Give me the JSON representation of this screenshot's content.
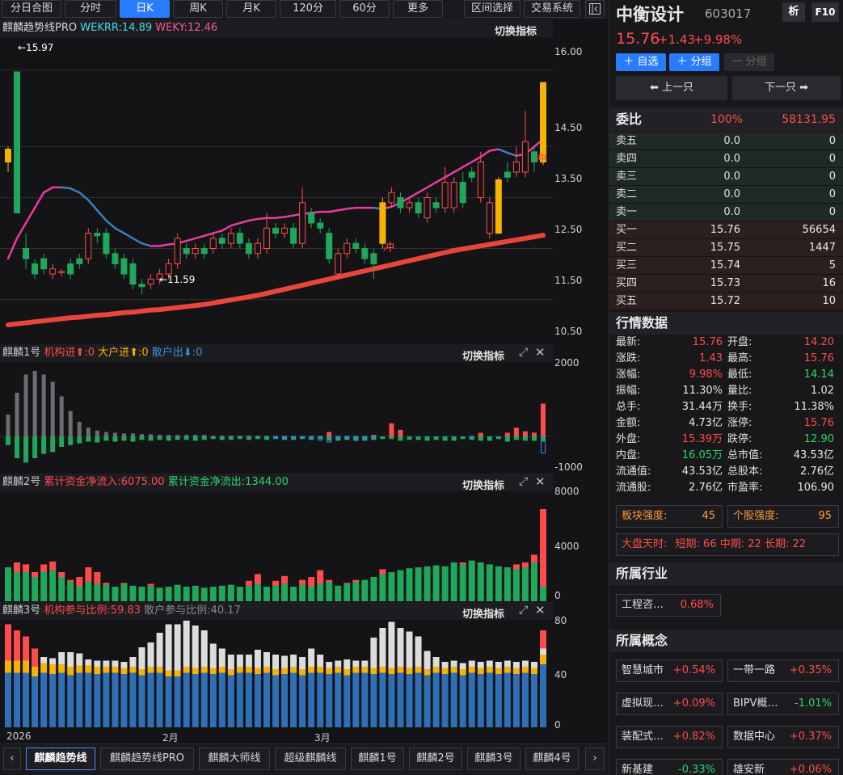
{
  "toolbar": {
    "items": [
      "分日合图",
      "分时",
      "日K",
      "周K",
      "月K",
      "120分",
      "60分",
      "更多",
      "区间选择",
      "交易系统"
    ],
    "active_index": 2
  },
  "main_panel": {
    "title": "麒麟趋势线PRO",
    "wekrr": "WEKRR:14.89",
    "weky": "WEKY:12.46",
    "switch_label": "切换指标",
    "high_label": "←15.97",
    "low_label": "←11.59",
    "chong": "冲",
    "axis": [
      "16.00",
      "14.50",
      "13.50",
      "12.50",
      "11.50",
      "10.50"
    ]
  },
  "panel1": {
    "title": "麒麟1号",
    "jg": "机构进⬆:0",
    "dh": "大户进⬆:0",
    "sh": "散户出⬇:0",
    "switch_label": "切换指标",
    "axis": [
      "2000",
      "-1000"
    ]
  },
  "panel2": {
    "title": "麒麟2号",
    "inflow": "累计资金净流入:6075.00",
    "outflow": "累计资金净流出:1344.00",
    "switch_label": "切换指标",
    "axis": [
      "8000",
      "4000",
      "0"
    ]
  },
  "panel3": {
    "title": "麒麟3号",
    "jg": "机构参与比例:59.83",
    "sh": "散户参与比例:40.17",
    "switch_label": "切换指标",
    "axis": [
      "80",
      "40",
      "0"
    ]
  },
  "xaxis": [
    "2026",
    "2月",
    "3月"
  ],
  "bottom_tabs": [
    "麒麟趋势线",
    "麒麟趋势线PRO",
    "麒麟大师线",
    "超级麒麟线",
    "麒麟1号",
    "麒麟2号",
    "麒麟3号",
    "麒麟4号"
  ],
  "stock": {
    "name": "中衡设计",
    "code": "603017",
    "xi": "析",
    "f10": "F10",
    "price": "15.76",
    "change": "+1.43",
    "pct": "+9.98%"
  },
  "actions": {
    "add_fav": "＋ 自选",
    "add_group": "＋ 分组",
    "sub_group": "一 分组",
    "prev": "⬅ 上一只",
    "next": "下一只 ➡"
  },
  "weibi": {
    "label": "委比",
    "pct": "100%",
    "val": "58131.95"
  },
  "sells": [
    [
      "卖五",
      "0.0",
      "0"
    ],
    [
      "卖四",
      "0.0",
      "0"
    ],
    [
      "卖三",
      "0.0",
      "0"
    ],
    [
      "卖二",
      "0.0",
      "0"
    ],
    [
      "卖一",
      "0.0",
      "0"
    ]
  ],
  "buys": [
    [
      "买一",
      "15.76",
      "56654"
    ],
    [
      "买二",
      "15.75",
      "1447"
    ],
    [
      "买三",
      "15.74",
      "5"
    ],
    [
      "买四",
      "15.73",
      "16"
    ],
    [
      "买五",
      "15.72",
      "10"
    ]
  ],
  "quote_title": "行情数据",
  "quotes": [
    [
      "最新:",
      "15.76",
      "red",
      "开盘:",
      "14.20",
      "red"
    ],
    [
      "涨跌:",
      "1.43",
      "red",
      "最高:",
      "15.76",
      "red"
    ],
    [
      "涨幅:",
      "9.98%",
      "red",
      "最低:",
      "14.14",
      "green"
    ],
    [
      "振幅:",
      "11.30%",
      "white",
      "量比:",
      "1.02",
      "white"
    ],
    [
      "总手:",
      "31.44万",
      "white",
      "换手:",
      "11.38%",
      "white"
    ],
    [
      "金额:",
      "4.73亿",
      "white",
      "涨停:",
      "15.76",
      "red"
    ],
    [
      "外盘:",
      "15.39万",
      "red",
      "跌停:",
      "12.90",
      "green"
    ],
    [
      "内盘:",
      "16.05万",
      "green",
      "总市值:",
      "43.53亿",
      "white"
    ],
    [
      "流通值:",
      "43.53亿",
      "white",
      "总股本:",
      "2.76亿",
      "white"
    ],
    [
      "流通股:",
      "2.76亿",
      "white",
      "市盈率:",
      "106.90",
      "white"
    ]
  ],
  "strength": {
    "sector_label": "板块强度:",
    "sector": "45",
    "stock_label": "个股强度:",
    "stock": "95"
  },
  "market": {
    "label": "大盘天时:",
    "short": "短期: 66",
    "mid": "中期: 22",
    "long": "长期: 22"
  },
  "industry_title": "所属行业",
  "industry": {
    "name": "工程咨…",
    "pct": "0.68%"
  },
  "concept_title": "所属概念",
  "concepts": [
    [
      "智慧城市",
      "+0.54%",
      "red"
    ],
    [
      "一带一路",
      "+0.35%",
      "red"
    ],
    [
      "虚拟现…",
      "+0.09%",
      "red"
    ],
    [
      "BIPV概…",
      "-1.01%",
      "green"
    ],
    [
      "装配式…",
      "+0.82%",
      "red"
    ],
    [
      "数据中心",
      "+0.37%",
      "red"
    ],
    [
      "新基建",
      "-0.33%",
      "green"
    ],
    [
      "雄安新",
      "+0.06%",
      "red"
    ]
  ],
  "candles": [
    [
      14.2,
      14.45,
      14.0,
      14.5
    ],
    [
      13.2,
      15.97,
      13.2,
      15.97
    ],
    [
      12.5,
      12.3,
      12.1,
      12.8
    ],
    [
      12.2,
      12.0,
      11.9,
      12.3
    ],
    [
      12.3,
      12.1,
      12.0,
      12.4
    ],
    [
      12.0,
      12.1,
      11.9,
      12.2
    ],
    [
      12.05,
      12.05,
      11.95,
      12.1
    ],
    [
      12.2,
      12.0,
      11.9,
      12.3
    ],
    [
      12.3,
      12.2,
      12.1,
      12.4
    ],
    [
      12.3,
      12.8,
      12.2,
      12.9
    ],
    [
      12.8,
      12.75,
      12.6,
      12.9
    ],
    [
      12.8,
      12.4,
      12.3,
      12.9
    ],
    [
      12.4,
      12.2,
      12.1,
      12.5
    ],
    [
      12.3,
      12.0,
      11.9,
      12.4
    ],
    [
      12.2,
      11.8,
      11.7,
      12.3
    ],
    [
      11.8,
      11.75,
      11.6,
      11.9
    ],
    [
      11.8,
      11.9,
      11.7,
      12.0
    ],
    [
      11.9,
      12.0,
      11.8,
      12.1
    ],
    [
      12.0,
      12.2,
      11.9,
      12.3
    ],
    [
      12.2,
      12.7,
      12.1,
      12.8
    ],
    [
      12.5,
      12.4,
      12.3,
      12.6
    ],
    [
      12.4,
      12.5,
      12.3,
      12.6
    ],
    [
      12.5,
      12.4,
      12.3,
      12.6
    ],
    [
      12.5,
      12.7,
      12.4,
      12.8
    ],
    [
      12.7,
      12.6,
      12.5,
      12.8
    ],
    [
      12.6,
      12.8,
      12.5,
      12.9
    ],
    [
      12.8,
      12.6,
      12.5,
      12.9
    ],
    [
      12.6,
      12.4,
      12.3,
      12.7
    ],
    [
      12.4,
      12.6,
      12.3,
      12.7
    ],
    [
      12.5,
      12.9,
      12.4,
      13.2
    ],
    [
      12.9,
      12.8,
      12.7,
      13.0
    ],
    [
      12.8,
      12.9,
      12.7,
      13.0
    ],
    [
      12.9,
      12.6,
      12.5,
      13.0
    ],
    [
      12.6,
      13.4,
      12.5,
      13.7
    ],
    [
      13.2,
      13.0,
      12.9,
      13.3
    ],
    [
      13.0,
      12.9,
      12.8,
      13.1
    ],
    [
      12.8,
      12.3,
      12.2,
      12.9
    ],
    [
      12.0,
      12.4,
      11.9,
      12.5
    ],
    [
      12.4,
      12.6,
      12.3,
      12.7
    ],
    [
      12.6,
      12.5,
      12.4,
      12.7
    ],
    [
      12.5,
      12.3,
      12.2,
      12.6
    ],
    [
      12.4,
      12.2,
      11.9,
      12.5
    ],
    [
      12.6,
      13.4,
      12.5,
      13.5
    ],
    [
      13.4,
      13.6,
      13.3,
      13.7
    ],
    [
      13.5,
      13.3,
      13.2,
      13.6
    ],
    [
      13.3,
      13.4,
      13.2,
      13.5
    ],
    [
      13.4,
      13.2,
      13.1,
      13.5
    ],
    [
      13.1,
      13.5,
      13.0,
      13.6
    ],
    [
      13.4,
      13.3,
      13.2,
      13.5
    ],
    [
      13.3,
      13.8,
      13.2,
      14.1
    ],
    [
      13.3,
      13.8,
      13.2,
      13.9
    ],
    [
      13.8,
      13.4,
      13.3,
      14.0
    ],
    [
      14.0,
      13.9,
      13.8,
      14.1
    ],
    [
      13.5,
      14.2,
      13.4,
      14.4
    ],
    [
      12.8,
      13.4,
      12.7,
      13.5
    ],
    [
      12.8,
      13.85,
      12.8,
      13.9
    ],
    [
      14.0,
      13.9,
      13.8,
      14.2
    ],
    [
      14.0,
      14.2,
      13.9,
      14.5
    ],
    [
      14.0,
      14.6,
      13.9,
      15.2
    ],
    [
      14.4,
      14.2,
      14.0,
      14.5
    ],
    [
      14.2,
      15.76,
      14.14,
      15.76
    ]
  ],
  "ma_short": [
    12.3,
    12.7,
    13.0,
    13.3,
    13.6,
    13.7,
    13.7,
    13.68,
    13.6,
    13.45,
    13.25,
    13.05,
    12.9,
    12.8,
    12.7,
    12.6,
    12.55,
    12.55,
    12.58,
    12.6,
    12.65,
    12.7,
    12.75,
    12.8,
    12.85,
    12.95,
    13.0,
    13.05,
    13.08,
    13.1,
    13.1,
    13.12,
    13.15,
    13.18,
    13.2,
    13.22,
    13.22,
    13.25,
    13.28,
    13.3,
    13.3,
    13.3,
    13.28,
    13.32,
    13.4,
    13.5,
    13.6,
    13.7,
    13.8,
    13.9,
    14.0,
    14.1,
    14.2,
    14.3,
    14.42,
    14.45,
    14.38,
    14.32,
    14.36,
    14.5,
    14.65
  ],
  "ma_long": [
    11.0,
    11.02,
    11.04,
    11.06,
    11.08,
    11.1,
    11.12,
    11.14,
    11.15,
    11.17,
    11.19,
    11.2,
    11.22,
    11.24,
    11.25,
    11.27,
    11.29,
    11.3,
    11.32,
    11.34,
    11.36,
    11.38,
    11.4,
    11.43,
    11.46,
    11.49,
    11.52,
    11.55,
    11.58,
    11.62,
    11.66,
    11.7,
    11.74,
    11.78,
    11.82,
    11.86,
    11.9,
    11.94,
    11.98,
    12.02,
    12.06,
    12.1,
    12.14,
    12.18,
    12.22,
    12.26,
    12.3,
    12.34,
    12.38,
    12.42,
    12.46,
    12.49,
    12.52,
    12.55,
    12.58,
    12.61,
    12.64,
    12.67,
    12.7,
    12.73,
    12.76
  ],
  "p1_gray": [
    0.3,
    0.6,
    0.85,
    0.9,
    0.85,
    0.75,
    0.55,
    0.35,
    0.2,
    0.12,
    0.08,
    0.06,
    0.05,
    0.04,
    0.04,
    0.03,
    0.03,
    0.02,
    0.02,
    0.02,
    0.02,
    0.02,
    0.02,
    0.01,
    0.01,
    0.01,
    0.01,
    0.01,
    0.01,
    0.01,
    0,
    0,
    0,
    0,
    0,
    0,
    0,
    0,
    0,
    0,
    0,
    0,
    0,
    0,
    0,
    0,
    0,
    0,
    0,
    0,
    0,
    0,
    0,
    0,
    0,
    0,
    0,
    0,
    0,
    0,
    0
  ],
  "p1_red": [
    0,
    0,
    0,
    0,
    0,
    0,
    0,
    0,
    0,
    0,
    0,
    0,
    0,
    0,
    0,
    0,
    0,
    0,
    0,
    0,
    0,
    0,
    0,
    0,
    0,
    0,
    0,
    0,
    0,
    0,
    0,
    0,
    0,
    0,
    0,
    0,
    0.06,
    0,
    0,
    0,
    0,
    0.02,
    0,
    0.18,
    0.09,
    0,
    0,
    0,
    0,
    0,
    0,
    0,
    0,
    0.05,
    0,
    0,
    0.05,
    0.12,
    0.07,
    0.05,
    0.45
  ],
  "p1_green": [
    0.1,
    0.25,
    0.3,
    0.25,
    0.2,
    0.18,
    0.12,
    0.1,
    0.08,
    0.06,
    0.07,
    0.05,
    0.06,
    0.05,
    0.06,
    0.04,
    0.05,
    0.04,
    0.05,
    0.04,
    0.04,
    0.05,
    0.04,
    0.03,
    0.04,
    0.04,
    0.03,
    0.04,
    0.03,
    0.04,
    0.03,
    0.04,
    0.04,
    0.03,
    0.04,
    0.03,
    0.05,
    0.05,
    0.04,
    0.05,
    0.05,
    0.04,
    0.03,
    0.03,
    0.05,
    0.04,
    0.04,
    0.05,
    0.04,
    0.05,
    0.05,
    0.03,
    0.04,
    0.05,
    0.05,
    0.03,
    0.06,
    0.04,
    0.05,
    0.05,
    0.06
  ],
  "p1_blue": [
    0,
    0,
    0,
    0,
    0,
    0,
    0,
    0,
    0,
    0,
    0,
    0,
    0,
    0,
    0,
    0,
    0,
    0,
    0,
    0,
    0,
    0,
    0,
    0,
    0,
    0,
    0,
    0,
    0,
    0,
    0.04,
    0.05,
    0.03,
    0.04,
    0.05,
    0.08,
    0.12,
    0.06,
    0.04,
    0.08,
    0.05,
    0.05,
    0,
    0,
    0,
    0,
    0,
    0,
    0,
    0,
    0,
    0,
    0.03,
    0,
    0,
    0,
    0,
    0,
    0,
    0,
    0.35
  ],
  "p2_green": [
    0.35,
    0.3,
    0.3,
    0.25,
    0.3,
    0.32,
    0.25,
    0.2,
    0.15,
    0.2,
    0.18,
    0.17,
    0.15,
    0.18,
    0.16,
    0.15,
    0.16,
    0.14,
    0.15,
    0.17,
    0.15,
    0.16,
    0.14,
    0.15,
    0.16,
    0.17,
    0.15,
    0.16,
    0.18,
    0.15,
    0.16,
    0.18,
    0.15,
    0.17,
    0.15,
    0.18,
    0.2,
    0.16,
    0.18,
    0.2,
    0.22,
    0.25,
    0.28,
    0.3,
    0.32,
    0.34,
    0.35,
    0.36,
    0.37,
    0.36,
    0.4,
    0.38,
    0.42,
    0.4,
    0.38,
    0.36,
    0.35,
    0.33,
    0.35,
    0.4,
    0.15
  ],
  "p2_red": [
    0,
    0.1,
    0.08,
    0.05,
    0.08,
    0.09,
    0.05,
    0.02,
    0.1,
    0.15,
    0.12,
    0.02,
    0,
    0.01,
    0,
    0,
    0.02,
    0,
    0,
    0,
    0,
    0,
    0,
    0,
    0,
    0,
    0,
    0.05,
    0.1,
    0,
    0.05,
    0.08,
    0,
    0.05,
    0.1,
    0.14,
    0.02,
    0,
    0.01,
    0.02,
    0,
    0,
    0.05,
    0,
    0,
    0,
    0,
    0,
    0,
    0,
    0,
    0.02,
    0,
    0,
    0,
    0,
    0,
    0.05,
    0.05,
    0.08,
    0.8
  ],
  "p3_blue": [
    0.45,
    0.45,
    0.45,
    0.42,
    0.45,
    0.44,
    0.45,
    0.43,
    0.45,
    0.45,
    0.44,
    0.45,
    0.45,
    0.44,
    0.45,
    0.43,
    0.45,
    0.45,
    0.42,
    0.42,
    0.45,
    0.44,
    0.45,
    0.44,
    0.45,
    0.43,
    0.45,
    0.45,
    0.44,
    0.45,
    0.43,
    0.44,
    0.45,
    0.43,
    0.45,
    0.45,
    0.44,
    0.45,
    0.43,
    0.45,
    0.45,
    0.44,
    0.45,
    0.44,
    0.45,
    0.44,
    0.45,
    0.43,
    0.45,
    0.44,
    0.45,
    0.43,
    0.45,
    0.44,
    0.45,
    0.44,
    0.45,
    0.44,
    0.45,
    0.44,
    0.52
  ],
  "p3_yellow": [
    0.1,
    0.1,
    0.1,
    0.08,
    0.08,
    0.08,
    0.07,
    0.07,
    0.06,
    0.06,
    0.06,
    0.05,
    0.05,
    0.05,
    0.05,
    0.05,
    0.05,
    0.05,
    0.05,
    0.05,
    0.05,
    0.05,
    0.05,
    0.05,
    0.05,
    0.05,
    0.05,
    0.05,
    0.05,
    0.05,
    0.05,
    0.05,
    0.05,
    0.05,
    0.05,
    0.05,
    0.05,
    0.05,
    0.05,
    0.05,
    0.05,
    0.05,
    0.05,
    0.05,
    0.05,
    0.05,
    0.05,
    0.05,
    0.05,
    0.05,
    0.05,
    0.05,
    0.05,
    0.05,
    0.05,
    0.05,
    0.05,
    0.05,
    0.05,
    0.05,
    0.08
  ],
  "p3_white": [
    0,
    0,
    0,
    0,
    0.05,
    0.05,
    0.1,
    0.12,
    0.1,
    0.05,
    0.05,
    0.05,
    0.05,
    0.05,
    0.08,
    0.18,
    0.2,
    0.28,
    0.38,
    0.38,
    0.38,
    0.35,
    0.3,
    0.2,
    0.15,
    0.12,
    0.1,
    0.1,
    0.15,
    0.12,
    0.12,
    0.1,
    0.1,
    0.1,
    0.15,
    0.1,
    0.05,
    0.05,
    0.08,
    0.05,
    0.05,
    0.25,
    0.32,
    0.38,
    0.32,
    0.3,
    0.25,
    0.15,
    0.08,
    0.05,
    0.05,
    0.05,
    0.05,
    0.05,
    0.05,
    0.05,
    0.05,
    0.05,
    0.05,
    0.05,
    0.05
  ],
  "p3_red": [
    0.3,
    0.25,
    0.2,
    0.15,
    0,
    0,
    0,
    0,
    0,
    0,
    0,
    0,
    0,
    0,
    0,
    0,
    0,
    0,
    0,
    0,
    0,
    0,
    0,
    0,
    0,
    0,
    0,
    0,
    0,
    0,
    0,
    0,
    0,
    0,
    0,
    0,
    0,
    0,
    0,
    0,
    0,
    0,
    0,
    0,
    0,
    0,
    0,
    0,
    0,
    0,
    0,
    0,
    0,
    0,
    0,
    0,
    0,
    0,
    0,
    0,
    0.15
  ],
  "colors": {
    "up": "#ff4b4b",
    "down": "#1fa85c",
    "accent": "#2a7cff",
    "yellow": "#f5b400",
    "pink": "#e83c9e",
    "steel": "#3b7ec0",
    "ma_long": "#e8453c"
  }
}
